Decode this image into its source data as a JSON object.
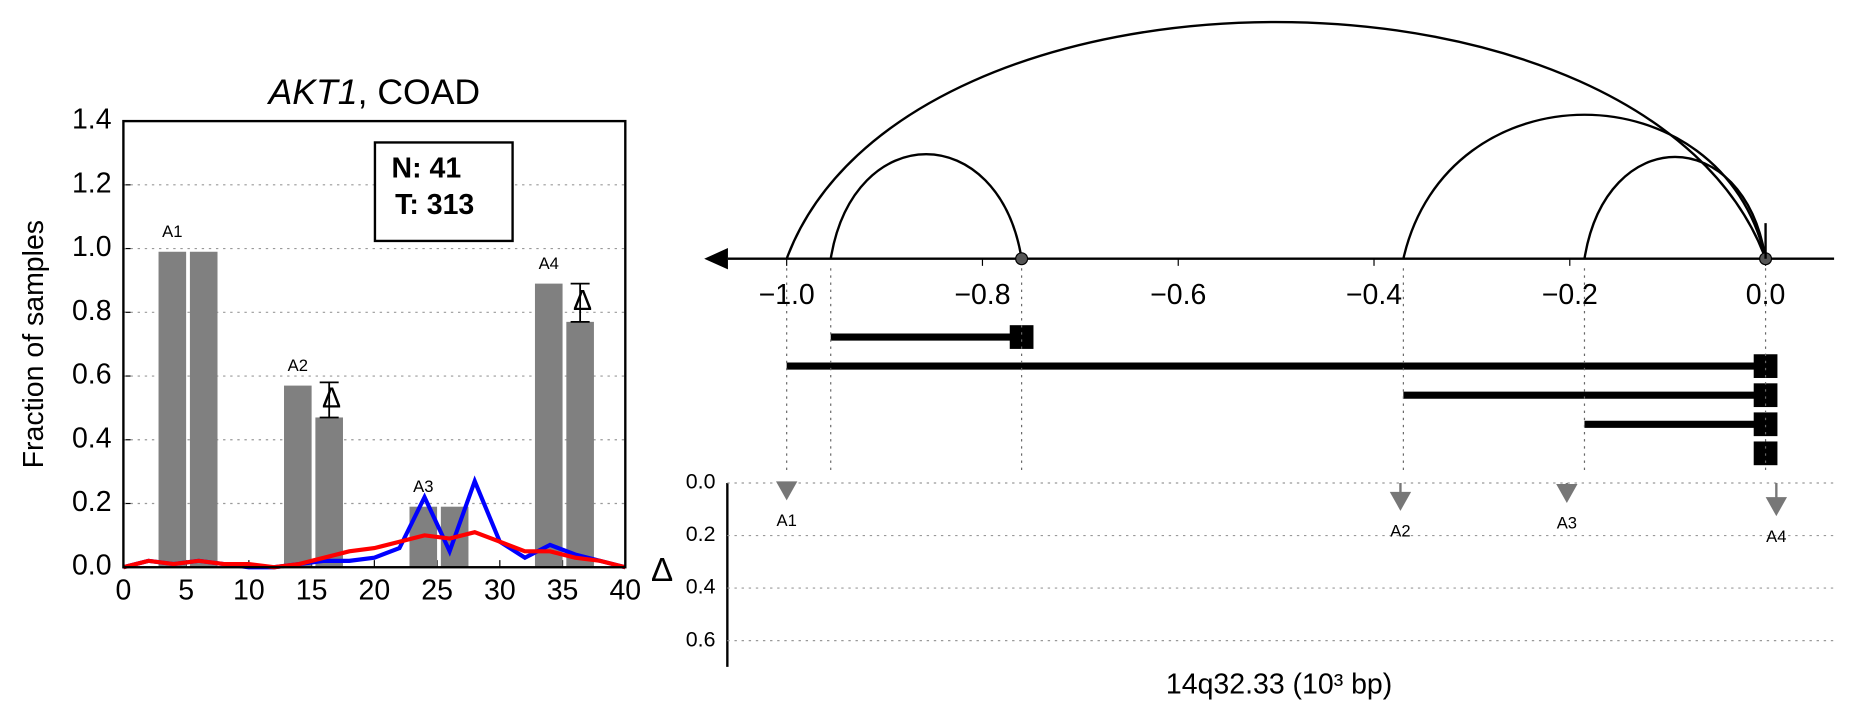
{
  "chart_data": [
    {
      "type": "bar",
      "title": [
        "AKT1",
        ", COAD"
      ],
      "ylabel": "Fraction of samples",
      "xlim": [
        0,
        40
      ],
      "xticks": [
        0,
        5,
        10,
        15,
        20,
        25,
        30,
        35,
        40
      ],
      "ylim": [
        0,
        1.4
      ],
      "yticks": [
        {
          "value": 0,
          "label": "0.0"
        },
        {
          "value": 0.2,
          "label": "0.2"
        },
        {
          "value": 0.4,
          "label": "0.4"
        },
        {
          "value": 0.6,
          "label": "0.6"
        },
        {
          "value": 0.8,
          "label": "0.8"
        },
        {
          "value": 1,
          "label": "1.0"
        },
        {
          "value": 1.2,
          "label": "1.2"
        },
        {
          "value": 1.4,
          "label": "1.4"
        }
      ],
      "grid": true,
      "bars": {
        "color": "#808080",
        "x": [
          3.9,
          6.4,
          13.9,
          16.4,
          23.9,
          26.4,
          33.9,
          36.4
        ],
        "values": [
          0.99,
          0.99,
          0.57,
          0.47,
          0.19,
          0.19,
          0.89,
          0.77
        ],
        "errors": [
          null,
          null,
          null,
          0.11,
          null,
          null,
          null,
          0.12
        ]
      },
      "group_labels": [
        "A1",
        "A2",
        "A3",
        "A4"
      ],
      "delta_symbol": "Δ",
      "annotations": [
        "N: 41",
        "T: 313"
      ],
      "line_x": [
        0,
        2,
        4,
        6,
        8,
        10,
        12,
        14,
        16,
        18,
        20,
        22,
        24,
        26,
        28,
        30,
        32,
        34,
        36,
        38,
        40
      ],
      "lines": [
        {
          "color": "#0000ff",
          "values": [
            0,
            0.02,
            0.01,
            0.02,
            0.01,
            0,
            0,
            0.01,
            0.02,
            0.02,
            0.03,
            0.06,
            0.22,
            0.05,
            0.27,
            0.08,
            0.03,
            0.07,
            0.04,
            0.02,
            0
          ]
        },
        {
          "color": "#ff0000",
          "values": [
            0,
            0.02,
            0.01,
            0.02,
            0.01,
            0.01,
            0,
            0.01,
            0.03,
            0.05,
            0.06,
            0.08,
            0.1,
            0.09,
            0.11,
            0.08,
            0.05,
            0.05,
            0.03,
            0.02,
            0
          ]
        }
      ]
    },
    {
      "type": "arc",
      "xlim": [
        -1.06,
        0.07
      ],
      "xticks": [
        {
          "value": -1,
          "label": "−1.0"
        },
        {
          "value": -0.8,
          "label": "−0.8"
        },
        {
          "value": -0.6,
          "label": "−0.6"
        },
        {
          "value": -0.4,
          "label": "−0.4"
        },
        {
          "value": -0.2,
          "label": "−0.2"
        },
        {
          "value": 0,
          "label": "0.0"
        }
      ],
      "segments": {
        "start": [
          -0.955,
          -1.0,
          -0.37,
          -0.185,
          0.0
        ],
        "end": [
          -0.76,
          0.0,
          0.0,
          0.0,
          0.0
        ]
      },
      "lower": {
        "ylabel": "Δ",
        "xlabel": "14q32.33 (10³ bp)",
        "ylim": [
          0,
          0.7
        ],
        "yticks": [
          {
            "value": 0,
            "label": "0.0"
          },
          {
            "value": 0.2,
            "label": "0.2"
          },
          {
            "value": 0.4,
            "label": "0.4"
          },
          {
            "value": 0.6,
            "label": "0.6"
          }
        ],
        "markers": {
          "color": "#777777",
          "names": [
            "A1",
            "A2",
            "A3",
            "A4"
          ],
          "x": [
            -1.0,
            -0.373,
            -0.203,
            0.011
          ],
          "values": [
            0.03,
            0.07,
            0.04,
            0.09
          ]
        }
      }
    }
  ]
}
